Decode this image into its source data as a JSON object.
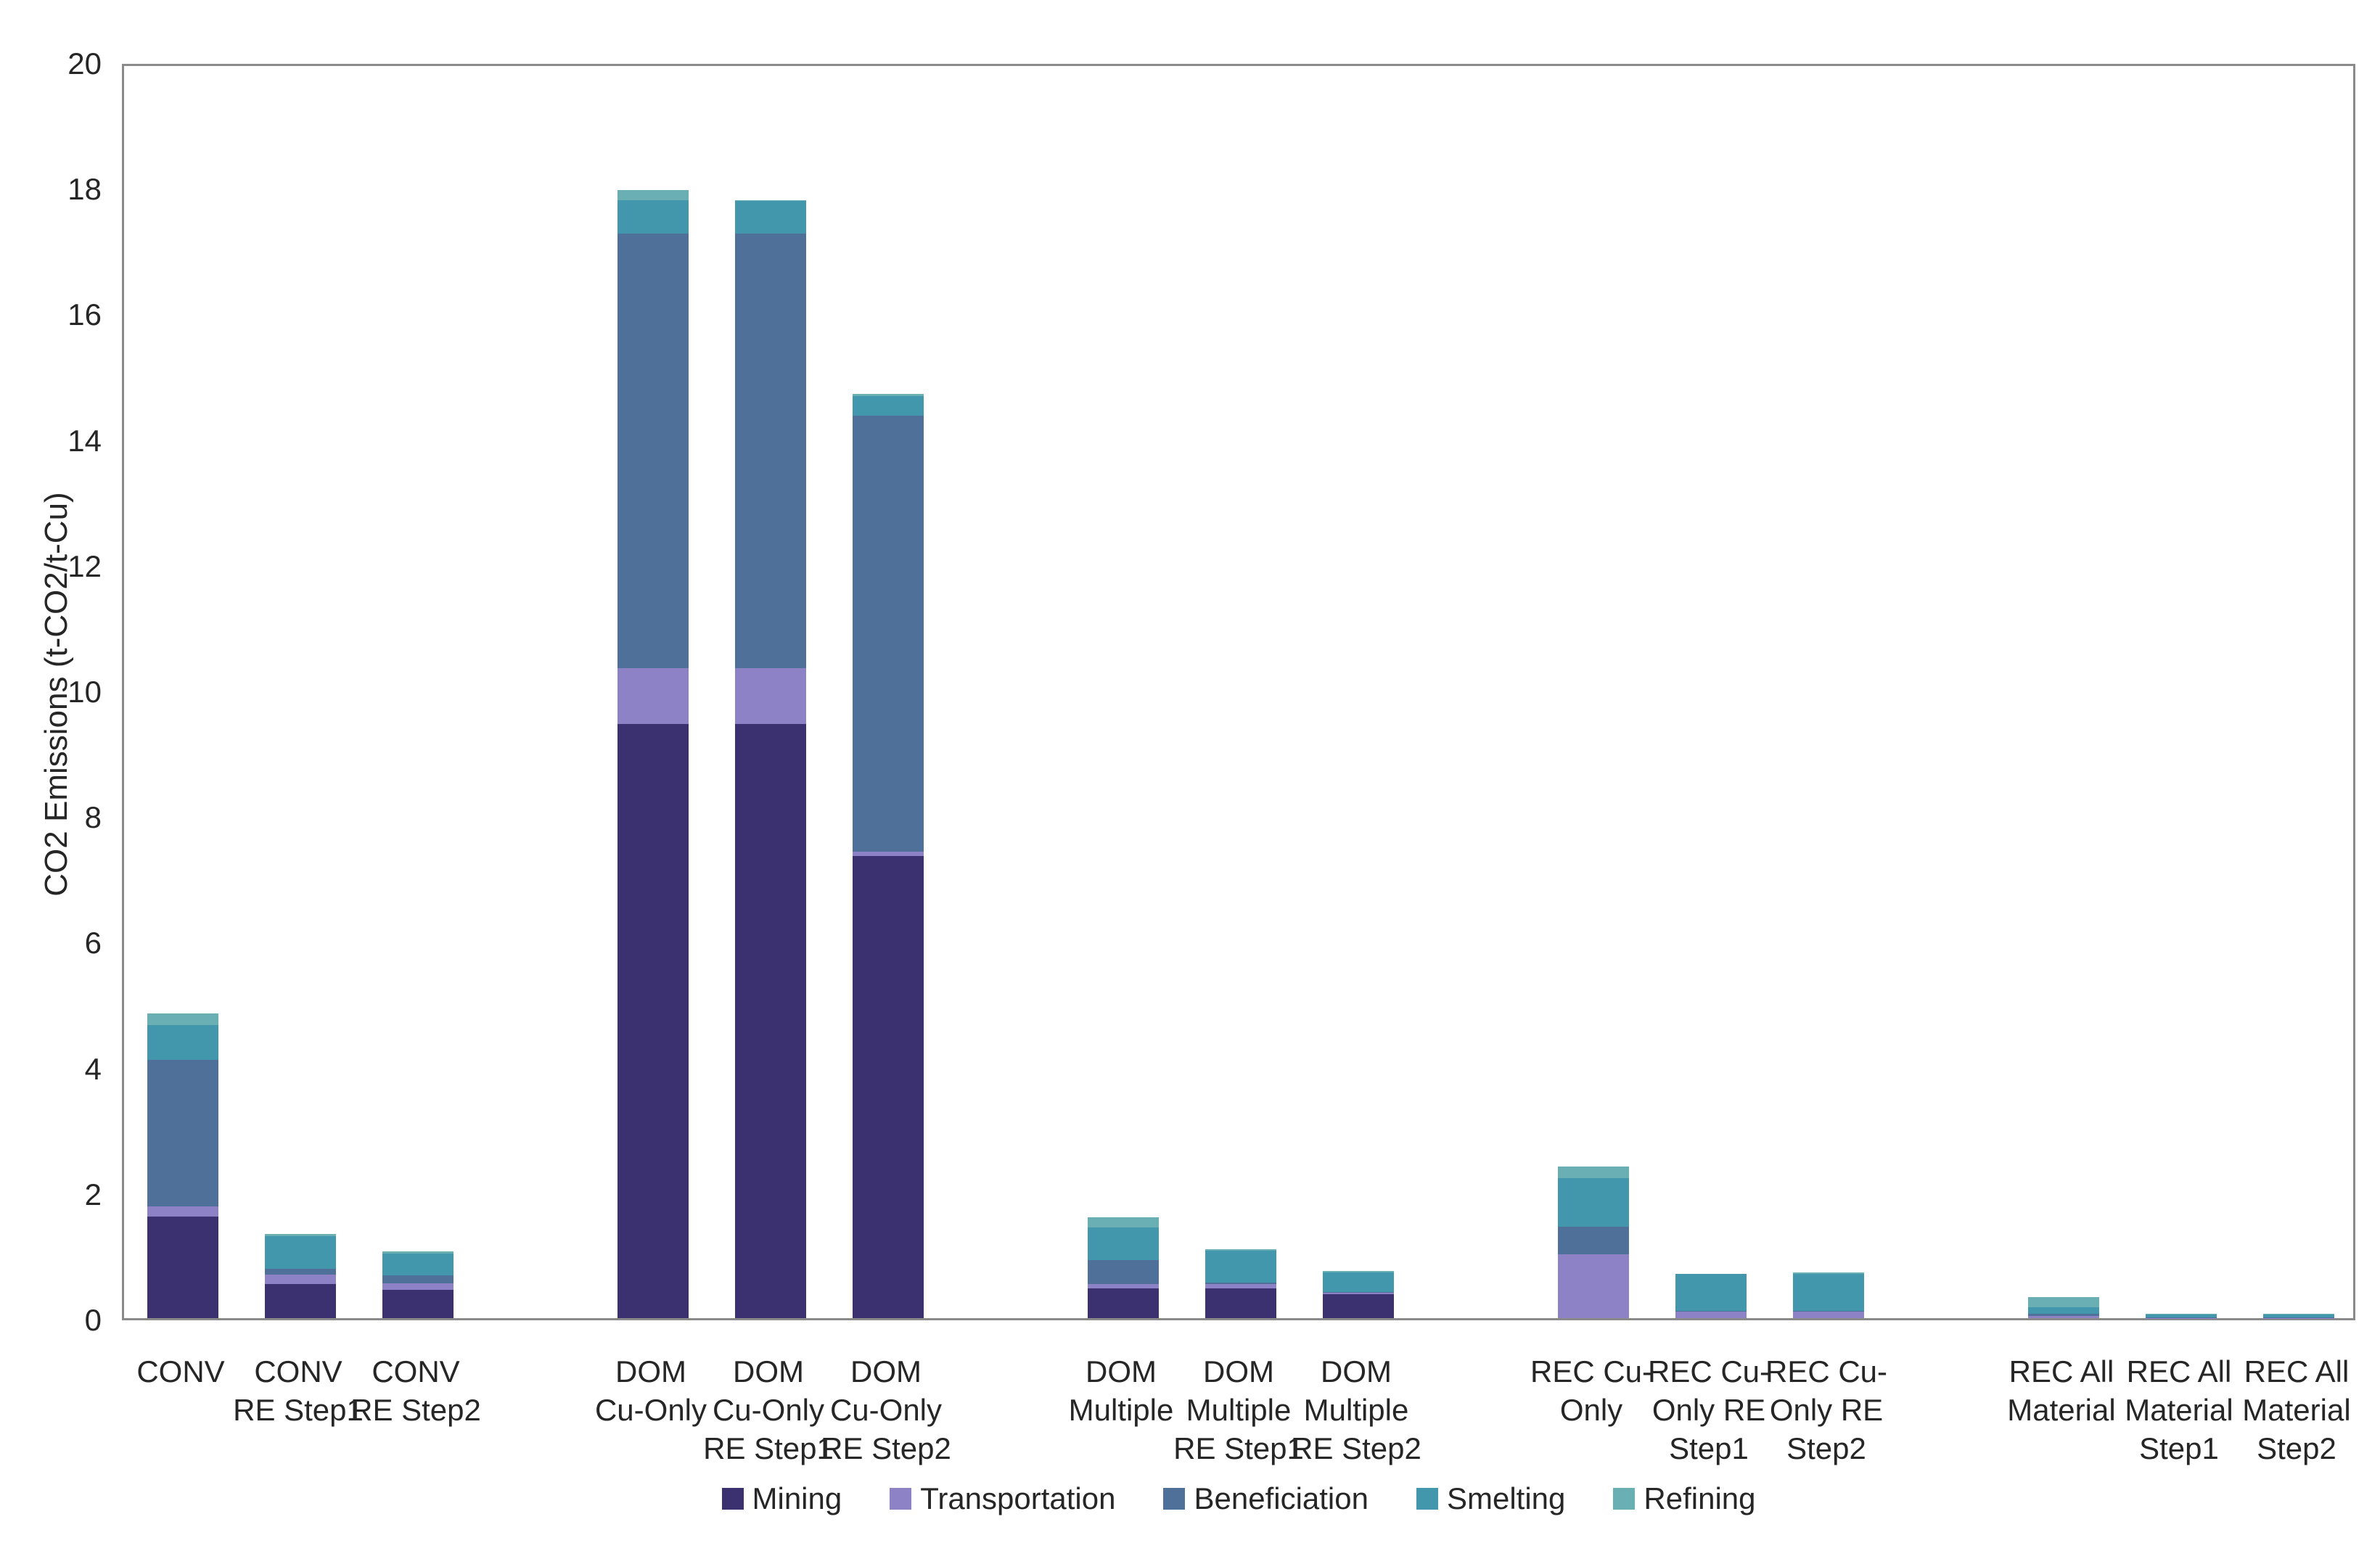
{
  "chart_data": {
    "type": "bar",
    "stacked": true,
    "title": "",
    "xlabel": "",
    "ylabel": "CO2 Emissions (t-CO2/t-Cu)",
    "ylim": [
      0,
      20
    ],
    "y_ticks": [
      0,
      2,
      4,
      6,
      8,
      10,
      12,
      14,
      16,
      18,
      20
    ],
    "grid": false,
    "legend_position": "bottom-center",
    "colors": {
      "axis_border": "#8a8a8a",
      "text": "#262626",
      "background": "#ffffff"
    },
    "categories": [
      {
        "label_lines": [
          "CONV"
        ],
        "slot": 0
      },
      {
        "label_lines": [
          "CONV",
          "RE Step1"
        ],
        "slot": 1
      },
      {
        "label_lines": [
          "CONV",
          "RE Step2"
        ],
        "slot": 2
      },
      {
        "label_lines": [
          "DOM",
          "Cu-Only"
        ],
        "slot": 4
      },
      {
        "label_lines": [
          "DOM",
          "Cu-Only",
          "RE Step1"
        ],
        "slot": 5
      },
      {
        "label_lines": [
          "DOM",
          "Cu-Only",
          "RE Step2"
        ],
        "slot": 6
      },
      {
        "label_lines": [
          "DOM",
          "Multiple"
        ],
        "slot": 8
      },
      {
        "label_lines": [
          "DOM",
          "Multiple",
          "RE Step1"
        ],
        "slot": 9
      },
      {
        "label_lines": [
          "DOM",
          "Multiple",
          "RE Step2"
        ],
        "slot": 10
      },
      {
        "label_lines": [
          "REC Cu-",
          "Only"
        ],
        "slot": 12
      },
      {
        "label_lines": [
          "REC Cu-",
          "Only RE",
          "Step1"
        ],
        "slot": 13
      },
      {
        "label_lines": [
          "REC Cu-",
          "Only RE",
          "Step2"
        ],
        "slot": 14
      },
      {
        "label_lines": [
          "REC All",
          "Material"
        ],
        "slot": 16
      },
      {
        "label_lines": [
          "REC All",
          "Material",
          "Step1"
        ],
        "slot": 17
      },
      {
        "label_lines": [
          "REC All",
          "Material",
          "Step2"
        ],
        "slot": 18
      }
    ],
    "series": [
      {
        "name": "Mining",
        "color": "#3b3170",
        "values": [
          1.62,
          0.54,
          0.45,
          9.46,
          9.46,
          7.36,
          0.47,
          0.47,
          0.38,
          0.0,
          0.0,
          0.0,
          0.0,
          0.0,
          0.0
        ]
      },
      {
        "name": "Transportation",
        "color": "#8e82c6",
        "values": [
          0.16,
          0.15,
          0.11,
          0.89,
          0.89,
          0.07,
          0.07,
          0.07,
          0.02,
          1.02,
          0.1,
          0.1,
          0.03,
          0.005,
          0.005
        ]
      },
      {
        "name": "Beneficiation",
        "color": "#4f7199",
        "values": [
          2.33,
          0.1,
          0.12,
          6.91,
          6.91,
          6.94,
          0.38,
          0.03,
          0.02,
          0.44,
          0.02,
          0.02,
          0.04,
          0.005,
          0.005
        ]
      },
      {
        "name": "Smelting",
        "color": "#4297ac",
        "values": [
          0.55,
          0.52,
          0.35,
          0.53,
          0.52,
          0.31,
          0.52,
          0.51,
          0.31,
          0.77,
          0.58,
          0.58,
          0.1,
          0.05,
          0.05
        ]
      },
      {
        "name": "Refining",
        "color": "#6aafb4",
        "values": [
          0.19,
          0.03,
          0.03,
          0.17,
          0.02,
          0.03,
          0.17,
          0.02,
          0.02,
          0.18,
          0.01,
          0.03,
          0.16,
          0.01,
          0.015
        ]
      }
    ]
  },
  "layout_note": "stacked column chart, 5 groups of 3 bars"
}
